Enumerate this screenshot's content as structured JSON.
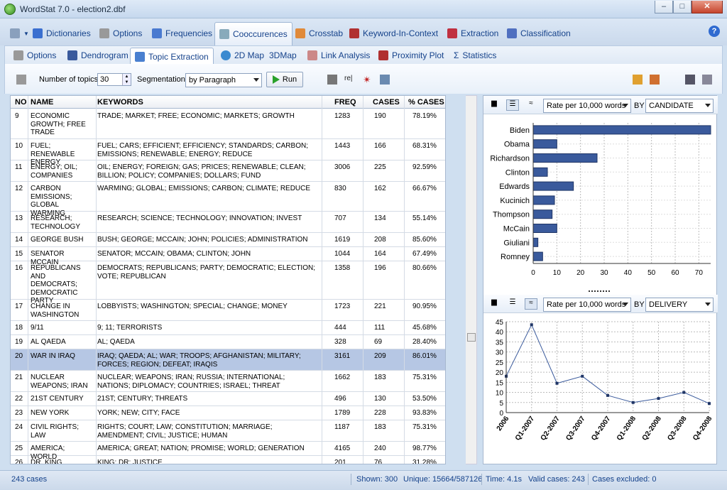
{
  "window": {
    "title": "WordStat 7.0 - election2.dbf"
  },
  "main_tabs": [
    "Dictionaries",
    "Options",
    "Frequencies",
    "Cooccurences",
    "Crosstab",
    "Keyword-In-Context",
    "Extraction",
    "Classification"
  ],
  "sub_tabs": [
    "Options",
    "Dendrogram",
    "Topic Extraction",
    "2D Map",
    "3DMap",
    "Link Analysis",
    "Proximity Plot",
    "Statistics"
  ],
  "toolbar": {
    "topics_label": "Number of topics:",
    "topics_value": "30",
    "seg_label": "Segmentation:",
    "seg_value": "by Paragraph",
    "run_label": "Run",
    "re_label": "re|"
  },
  "table": {
    "headers": [
      "NO",
      "NAME",
      "KEYWORDS",
      "FREQ",
      "CASES",
      "% CASES"
    ],
    "rows": [
      {
        "no": "9",
        "name": "ECONOMIC GROWTH; FREE TRADE",
        "keywords": "TRADE; MARKET; FREE; ECONOMIC; MARKETS; GROWTH",
        "freq": "1283",
        "cases": "190",
        "pct": "78.19%"
      },
      {
        "no": "10",
        "name": "FUEL; RENEWABLE ENERGY",
        "keywords": "FUEL; CARS; EFFICIENT; EFFICIENCY; STANDARDS; CARBON; EMISSIONS; RENEWABLE; ENERGY; REDUCE",
        "freq": "1443",
        "cases": "166",
        "pct": "68.31%"
      },
      {
        "no": "11",
        "name": "ENERGY; OIL; COMPANIES",
        "keywords": "OIL; ENERGY; FOREIGN; GAS; PRICES; RENEWABLE; CLEAN; BILLION; POLICY; COMPANIES; DOLLARS; FUND",
        "freq": "3006",
        "cases": "225",
        "pct": "92.59%"
      },
      {
        "no": "12",
        "name": "CARBON EMISSIONS; GLOBAL WARMING",
        "keywords": "WARMING; GLOBAL; EMISSIONS; CARBON; CLIMATE; REDUCE",
        "freq": "830",
        "cases": "162",
        "pct": "66.67%"
      },
      {
        "no": "13",
        "name": "RESEARCH; TECHNOLOGY",
        "keywords": "RESEARCH; SCIENCE; TECHNOLOGY; INNOVATION; INVEST",
        "freq": "707",
        "cases": "134",
        "pct": "55.14%"
      },
      {
        "no": "14",
        "name": "GEORGE BUSH",
        "keywords": "BUSH; GEORGE; MCCAIN; JOHN; POLICIES; ADMINISTRATION",
        "freq": "1619",
        "cases": "208",
        "pct": "85.60%"
      },
      {
        "no": "15",
        "name": "SENATOR MCCAIN",
        "keywords": "SENATOR; MCCAIN; OBAMA; CLINTON; JOHN",
        "freq": "1044",
        "cases": "164",
        "pct": "67.49%"
      },
      {
        "no": "16",
        "name": "REPUBLICANS AND DEMOCRATS; DEMOCRATIC PARTY",
        "keywords": "DEMOCRATS; REPUBLICANS; PARTY; DEMOCRATIC; ELECTION; VOTE; REPUBLICAN",
        "freq": "1358",
        "cases": "196",
        "pct": "80.66%"
      },
      {
        "no": "17",
        "name": "CHANGE IN WASHINGTON",
        "keywords": "LOBBYISTS; WASHINGTON; SPECIAL; CHANGE; MONEY",
        "freq": "1723",
        "cases": "221",
        "pct": "90.95%"
      },
      {
        "no": "18",
        "name": "9/11",
        "keywords": "9; 11; TERRORISTS",
        "freq": "444",
        "cases": "111",
        "pct": "45.68%"
      },
      {
        "no": "19",
        "name": "AL QAEDA",
        "keywords": "AL; QAEDA",
        "freq": "328",
        "cases": "69",
        "pct": "28.40%"
      },
      {
        "no": "20",
        "name": "WAR IN IRAQ",
        "keywords": "IRAQ; QAEDA; AL; WAR; TROOPS; AFGHANISTAN; MILITARY; FORCES; REGION; DEFEAT; IRAQIS",
        "freq": "3161",
        "cases": "209",
        "pct": "86.01%"
      },
      {
        "no": "21",
        "name": "NUCLEAR WEAPONS; IRAN",
        "keywords": "NUCLEAR; WEAPONS; IRAN; RUSSIA; INTERNATIONAL; NATIONS; DIPLOMACY; COUNTRIES; ISRAEL; THREAT",
        "freq": "1662",
        "cases": "183",
        "pct": "75.31%"
      },
      {
        "no": "22",
        "name": "21ST CENTURY",
        "keywords": "21ST; CENTURY; THREATS",
        "freq": "496",
        "cases": "130",
        "pct": "53.50%"
      },
      {
        "no": "23",
        "name": "NEW YORK",
        "keywords": "YORK; NEW; CITY; FACE",
        "freq": "1789",
        "cases": "228",
        "pct": "93.83%"
      },
      {
        "no": "24",
        "name": "CIVIL RIGHTS; LAW",
        "keywords": "RIGHTS; COURT; LAW; CONSTITUTION; MARRIAGE; AMENDMENT; CIVIL; JUSTICE; HUMAN",
        "freq": "1187",
        "cases": "183",
        "pct": "75.31%"
      },
      {
        "no": "25",
        "name": "AMERICA; WORLD",
        "keywords": "AMERICA; GREAT; NATION; PROMISE; WORLD; GENERATION",
        "freq": "4165",
        "cases": "240",
        "pct": "98.77%"
      },
      {
        "no": "26",
        "name": "DR. KING",
        "keywords": "KING; DR; JUSTICE",
        "freq": "201",
        "cases": "76",
        "pct": "31.28%"
      }
    ]
  },
  "chart1_controls": {
    "measure": "Rate per 10,000 words",
    "by_label": "BY",
    "by_value": "CANDIDATE"
  },
  "chart2_controls": {
    "measure": "Rate per 10,000 words",
    "by_label": "BY",
    "by_value": "DELIVERY"
  },
  "chart_data": [
    {
      "type": "bar",
      "orientation": "horizontal",
      "categories": [
        "Biden",
        "Obama",
        "Richardson",
        "Clinton",
        "Edwards",
        "Kucinich",
        "Thompson",
        "McCain",
        "Giuliani",
        "Romney"
      ],
      "values": [
        75,
        10,
        27,
        6,
        17,
        9,
        8,
        10,
        2,
        4
      ],
      "xlim": [
        0,
        75
      ],
      "xticks": [
        0,
        10,
        20,
        30,
        40,
        50,
        60,
        70
      ],
      "color": "#3a5a9c",
      "grid": true
    },
    {
      "type": "line",
      "categories": [
        "2006",
        "Q1-2007",
        "Q2-2007",
        "Q3-2007",
        "Q4-2007",
        "Q1-2008",
        "Q2-2008",
        "Q3-2008",
        "Q4-2008"
      ],
      "values": [
        18,
        43.5,
        14.5,
        18,
        8.5,
        5,
        7,
        10,
        4.5
      ],
      "ylim": [
        0,
        45
      ],
      "yticks": [
        0,
        5,
        10,
        15,
        20,
        25,
        30,
        35,
        40,
        45
      ],
      "color": "#3a5a9c",
      "grid": true
    }
  ],
  "status": {
    "cases": "243 cases",
    "shown": "Shown: 300",
    "unique": "Unique: 15664/587126",
    "time": "Time: 4.1s",
    "valid": "Valid cases: 243",
    "excluded": "Cases excluded: 0"
  }
}
